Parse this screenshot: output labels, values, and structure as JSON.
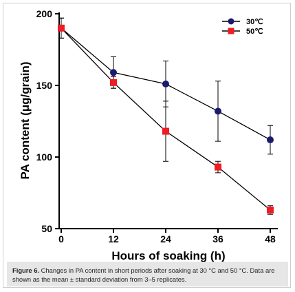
{
  "chart_data": {
    "type": "line",
    "xlabel": "Hours of soaking (h)",
    "ylabel": "PA content (μg/grain)",
    "xlim": [
      0,
      48
    ],
    "ylim": [
      50,
      200
    ],
    "x_ticks": [
      "0",
      "12",
      "24",
      "36",
      "48"
    ],
    "y_ticks": [
      "50",
      "100",
      "150",
      "200"
    ],
    "legend_position": "top-right",
    "series": [
      {
        "name": "30℃",
        "color": "#1a1a6e",
        "marker": "circle",
        "x": [
          0,
          12,
          24,
          36,
          48
        ],
        "y": [
          190,
          159,
          151,
          132,
          112
        ],
        "err": [
          7,
          11,
          16,
          21,
          10
        ]
      },
      {
        "name": "50℃",
        "color": "#ee1c25",
        "marker": "square",
        "x": [
          0,
          12,
          24,
          36,
          48
        ],
        "y": [
          190,
          152,
          118,
          93,
          63
        ],
        "err": [
          7,
          4,
          21,
          4,
          3
        ]
      }
    ]
  },
  "caption": {
    "label": "Figure 6.",
    "text": " Changes in PA content in short periods after soaking at 30 °C and 50 °C. Data are shown as the mean ± standard deviation from 3–5 replicates."
  }
}
